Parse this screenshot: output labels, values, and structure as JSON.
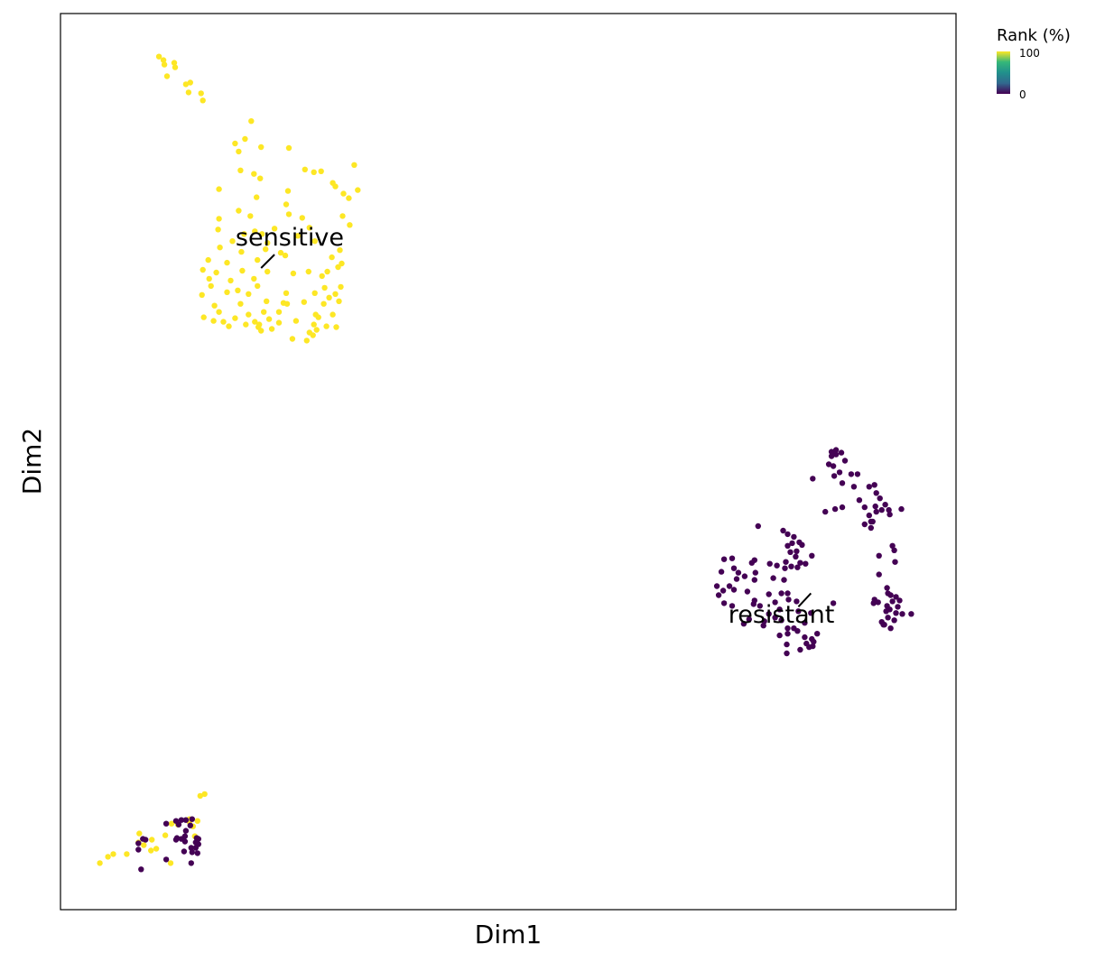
{
  "chart_data": {
    "type": "scatter",
    "xlabel": "Dim1",
    "ylabel": "Dim2",
    "xlim": [
      0,
      100
    ],
    "ylim": [
      0,
      100
    ],
    "axis_ticks": false,
    "grid": false,
    "legend": {
      "title": "Rank (%)",
      "type": "colorbar",
      "placement": "top-right",
      "ticks": [
        "100",
        "0"
      ],
      "colormap": [
        "#440154",
        "#31688e",
        "#21908c",
        "#35b779",
        "#fde725"
      ]
    },
    "annotations": [
      {
        "text": "sensitive",
        "x": 25.6,
        "y": 74.1,
        "point_x": 22.4,
        "point_y": 71.6,
        "tip_x": 23.9,
        "tip_y": 73.1
      },
      {
        "text": "resistant",
        "x": 80.5,
        "y": 32.0,
        "point_x": 83.8,
        "point_y": 35.3,
        "tip_x": 82.4,
        "tip_y": 33.8
      }
    ],
    "series": [
      {
        "color": "#fde725",
        "points": [
          [
            11.0,
            95.2
          ],
          [
            11.5,
            94.8
          ],
          [
            11.6,
            94.3
          ],
          [
            12.7,
            94.5
          ],
          [
            12.8,
            94.0
          ],
          [
            11.9,
            93.0
          ],
          [
            14.0,
            92.1
          ],
          [
            14.5,
            92.3
          ],
          [
            14.3,
            91.2
          ],
          [
            15.7,
            91.1
          ],
          [
            15.9,
            90.3
          ],
          [
            21.3,
            88.0
          ],
          [
            20.6,
            86.0
          ],
          [
            19.5,
            85.5
          ],
          [
            22.4,
            85.1
          ],
          [
            19.9,
            84.6
          ],
          [
            25.5,
            85.0
          ],
          [
            20.1,
            82.5
          ],
          [
            21.6,
            82.1
          ],
          [
            22.3,
            81.6
          ],
          [
            27.3,
            82.6
          ],
          [
            28.3,
            82.3
          ],
          [
            29.1,
            82.4
          ],
          [
            32.8,
            83.1
          ],
          [
            30.4,
            81.1
          ],
          [
            33.2,
            80.3
          ],
          [
            25.4,
            80.2
          ],
          [
            17.7,
            80.4
          ],
          [
            21.9,
            79.5
          ],
          [
            30.7,
            80.7
          ],
          [
            31.6,
            79.9
          ],
          [
            32.2,
            79.4
          ],
          [
            25.2,
            78.7
          ],
          [
            19.9,
            78.0
          ],
          [
            21.2,
            77.4
          ],
          [
            17.7,
            77.1
          ],
          [
            25.5,
            77.6
          ],
          [
            27.0,
            77.2
          ],
          [
            31.5,
            77.4
          ],
          [
            32.3,
            76.4
          ],
          [
            23.9,
            76.0
          ],
          [
            21.7,
            75.7
          ],
          [
            27.8,
            76.1
          ],
          [
            17.6,
            75.9
          ],
          [
            20.5,
            75.4
          ],
          [
            22.5,
            75.4
          ],
          [
            26.5,
            75.2
          ],
          [
            19.2,
            74.6
          ],
          [
            23.1,
            74.4
          ],
          [
            28.4,
            74.6
          ],
          [
            17.8,
            73.9
          ],
          [
            20.2,
            73.4
          ],
          [
            22.9,
            73.7
          ],
          [
            24.6,
            73.3
          ],
          [
            31.2,
            73.6
          ],
          [
            16.5,
            72.5
          ],
          [
            18.6,
            72.2
          ],
          [
            22.0,
            72.5
          ],
          [
            25.1,
            73.0
          ],
          [
            30.3,
            72.8
          ],
          [
            31.4,
            72.1
          ],
          [
            15.9,
            71.4
          ],
          [
            17.4,
            71.1
          ],
          [
            20.3,
            71.3
          ],
          [
            23.1,
            71.2
          ],
          [
            26.0,
            71.0
          ],
          [
            27.7,
            71.2
          ],
          [
            29.8,
            71.2
          ],
          [
            31.0,
            71.7
          ],
          [
            16.6,
            70.4
          ],
          [
            19.0,
            70.2
          ],
          [
            21.6,
            70.4
          ],
          [
            29.2,
            70.7
          ],
          [
            16.8,
            69.6
          ],
          [
            19.8,
            69.1
          ],
          [
            22.0,
            69.6
          ],
          [
            29.5,
            69.4
          ],
          [
            31.3,
            69.5
          ],
          [
            15.8,
            68.6
          ],
          [
            18.6,
            68.9
          ],
          [
            21.0,
            68.7
          ],
          [
            25.2,
            68.8
          ],
          [
            28.4,
            68.8
          ],
          [
            30.0,
            68.3
          ],
          [
            30.7,
            68.7
          ],
          [
            17.2,
            67.4
          ],
          [
            20.1,
            67.6
          ],
          [
            23.0,
            67.9
          ],
          [
            24.9,
            67.7
          ],
          [
            27.2,
            67.8
          ],
          [
            29.4,
            67.6
          ],
          [
            31.1,
            67.9
          ],
          [
            17.7,
            66.7
          ],
          [
            21.0,
            66.4
          ],
          [
            22.7,
            66.7
          ],
          [
            24.4,
            66.7
          ],
          [
            25.3,
            67.6
          ],
          [
            28.5,
            66.4
          ],
          [
            16.0,
            66.1
          ],
          [
            17.1,
            65.7
          ],
          [
            18.2,
            65.6
          ],
          [
            19.5,
            66.0
          ],
          [
            21.7,
            65.6
          ],
          [
            23.3,
            65.9
          ],
          [
            26.3,
            65.7
          ],
          [
            28.8,
            66.1
          ],
          [
            30.4,
            66.4
          ],
          [
            18.8,
            65.1
          ],
          [
            20.7,
            65.3
          ],
          [
            22.2,
            65.3
          ],
          [
            24.4,
            65.5
          ],
          [
            28.3,
            65.3
          ],
          [
            30.8,
            65.0
          ],
          [
            22.1,
            65.0
          ],
          [
            28.6,
            64.7
          ],
          [
            29.7,
            65.1
          ],
          [
            22.4,
            64.6
          ],
          [
            23.6,
            64.8
          ],
          [
            27.8,
            64.4
          ],
          [
            25.9,
            63.7
          ],
          [
            27.5,
            63.5
          ],
          [
            28.2,
            64.1
          ],
          [
            5.9,
            6.2
          ],
          [
            4.4,
            5.2
          ],
          [
            5.3,
            5.9
          ],
          [
            7.4,
            6.2
          ],
          [
            9.3,
            7.2
          ],
          [
            10.1,
            6.6
          ],
          [
            10.7,
            6.8
          ],
          [
            13.1,
            9.5
          ],
          [
            12.4,
            9.6
          ],
          [
            14.4,
            10.1
          ],
          [
            11.7,
            8.3
          ],
          [
            8.8,
            8.5
          ],
          [
            8.7,
            7.5
          ],
          [
            15.0,
            8.2
          ],
          [
            14.8,
            9.3
          ],
          [
            14.4,
            9.8
          ],
          [
            15.3,
            9.9
          ],
          [
            15.6,
            12.7
          ],
          [
            16.1,
            12.9
          ],
          [
            12.3,
            5.2
          ],
          [
            10.2,
            7.8
          ]
        ]
      },
      {
        "color": "#440154",
        "points": [
          [
            86.1,
            51.1
          ],
          [
            86.6,
            51.3
          ],
          [
            86.6,
            50.8
          ],
          [
            86.1,
            50.6
          ],
          [
            86.2,
            50.8
          ],
          [
            87.2,
            51.0
          ],
          [
            87.6,
            50.1
          ],
          [
            85.8,
            49.7
          ],
          [
            86.3,
            49.5
          ],
          [
            84.0,
            48.1
          ],
          [
            86.4,
            48.4
          ],
          [
            87.0,
            48.8
          ],
          [
            88.3,
            48.6
          ],
          [
            89.0,
            48.6
          ],
          [
            87.3,
            47.6
          ],
          [
            88.6,
            47.2
          ],
          [
            90.3,
            47.2
          ],
          [
            90.9,
            47.4
          ],
          [
            91.1,
            46.5
          ],
          [
            89.2,
            45.7
          ],
          [
            91.5,
            45.9
          ],
          [
            92.1,
            45.2
          ],
          [
            91.0,
            45.0
          ],
          [
            91.7,
            44.6
          ],
          [
            92.5,
            44.6
          ],
          [
            93.9,
            44.7
          ],
          [
            87.3,
            44.9
          ],
          [
            86.5,
            44.7
          ],
          [
            89.8,
            44.9
          ],
          [
            90.3,
            44.0
          ],
          [
            90.7,
            43.3
          ],
          [
            92.6,
            44.1
          ],
          [
            91.1,
            44.4
          ],
          [
            85.4,
            44.4
          ],
          [
            90.5,
            43.3
          ],
          [
            89.8,
            43.0
          ],
          [
            90.5,
            42.6
          ],
          [
            92.9,
            40.6
          ],
          [
            93.1,
            40.1
          ],
          [
            91.4,
            39.5
          ],
          [
            93.2,
            38.8
          ],
          [
            91.4,
            37.4
          ],
          [
            92.3,
            35.9
          ],
          [
            91.3,
            34.3
          ],
          [
            92.4,
            35.3
          ],
          [
            92.7,
            35.1
          ],
          [
            93.3,
            34.9
          ],
          [
            92.9,
            34.4
          ],
          [
            93.7,
            34.5
          ],
          [
            92.3,
            33.9
          ],
          [
            93.5,
            33.8
          ],
          [
            92.6,
            33.5
          ],
          [
            93.3,
            33.1
          ],
          [
            94.0,
            33.0
          ],
          [
            93.1,
            32.3
          ],
          [
            92.4,
            32.6
          ],
          [
            91.7,
            32.1
          ],
          [
            91.9,
            31.8
          ],
          [
            92.7,
            31.4
          ],
          [
            92.0,
            31.8
          ],
          [
            95.0,
            33.0
          ],
          [
            92.2,
            33.3
          ],
          [
            90.8,
            34.2
          ],
          [
            90.9,
            34.6
          ],
          [
            77.9,
            42.8
          ],
          [
            80.7,
            42.3
          ],
          [
            81.2,
            41.9
          ],
          [
            81.2,
            40.6
          ],
          [
            81.5,
            39.9
          ],
          [
            81.7,
            40.9
          ],
          [
            81.9,
            41.6
          ],
          [
            82.2,
            40.0
          ],
          [
            82.1,
            39.4
          ],
          [
            82.6,
            38.7
          ],
          [
            82.3,
            38.2
          ],
          [
            82.8,
            40.7
          ],
          [
            82.5,
            41.0
          ],
          [
            81.0,
            38.8
          ],
          [
            80.0,
            38.4
          ],
          [
            79.2,
            38.6
          ],
          [
            83.9,
            39.5
          ],
          [
            83.2,
            38.6
          ],
          [
            81.6,
            38.3
          ],
          [
            80.9,
            38.1
          ],
          [
            75.0,
            39.2
          ],
          [
            74.1,
            39.1
          ],
          [
            73.8,
            37.7
          ],
          [
            75.2,
            38.1
          ],
          [
            75.7,
            37.6
          ],
          [
            77.5,
            39.0
          ],
          [
            77.2,
            38.7
          ],
          [
            77.6,
            37.6
          ],
          [
            77.5,
            36.8
          ],
          [
            76.4,
            37.2
          ],
          [
            75.5,
            36.9
          ],
          [
            79.6,
            37.0
          ],
          [
            80.8,
            36.8
          ],
          [
            74.7,
            36.1
          ],
          [
            73.3,
            36.1
          ],
          [
            74.0,
            35.6
          ],
          [
            75.2,
            35.7
          ],
          [
            76.7,
            35.5
          ],
          [
            79.1,
            35.2
          ],
          [
            80.5,
            35.3
          ],
          [
            73.5,
            35.1
          ],
          [
            77.5,
            34.5
          ],
          [
            74.1,
            34.2
          ],
          [
            75.0,
            33.9
          ],
          [
            77.4,
            34.1
          ],
          [
            78.1,
            33.9
          ],
          [
            79.8,
            34.3
          ],
          [
            81.2,
            35.3
          ],
          [
            81.3,
            34.6
          ],
          [
            82.2,
            34.4
          ],
          [
            82.4,
            33.3
          ],
          [
            80.3,
            33.5
          ],
          [
            79.1,
            33.0
          ],
          [
            76.9,
            32.4
          ],
          [
            78.6,
            32.2
          ],
          [
            79.8,
            32.6
          ],
          [
            80.5,
            32.3
          ],
          [
            76.3,
            31.9
          ],
          [
            78.5,
            31.7
          ],
          [
            81.2,
            31.4
          ],
          [
            81.9,
            31.4
          ],
          [
            82.3,
            31.1
          ],
          [
            81.2,
            30.8
          ],
          [
            83.1,
            32.0
          ],
          [
            83.8,
            33.1
          ],
          [
            83.1,
            30.4
          ],
          [
            84.5,
            30.8
          ],
          [
            83.9,
            30.2
          ],
          [
            84.1,
            29.9
          ],
          [
            83.6,
            29.3
          ],
          [
            84.0,
            29.4
          ],
          [
            82.6,
            29.0
          ],
          [
            81.1,
            28.6
          ],
          [
            83.3,
            29.7
          ],
          [
            81.1,
            29.6
          ],
          [
            80.3,
            30.6
          ],
          [
            86.3,
            34.2
          ],
          [
            9.2,
            7.9
          ],
          [
            8.7,
            7.4
          ],
          [
            9.5,
            7.8
          ],
          [
            8.7,
            6.7
          ],
          [
            9.0,
            4.5
          ],
          [
            11.8,
            5.6
          ],
          [
            11.8,
            9.6
          ],
          [
            12.9,
            9.9
          ],
          [
            13.2,
            9.5
          ],
          [
            13.5,
            10.0
          ],
          [
            14.0,
            10.0
          ],
          [
            14.7,
            10.1
          ],
          [
            14.5,
            9.4
          ],
          [
            13.9,
            8.2
          ],
          [
            13.0,
            8.0
          ],
          [
            13.5,
            7.9
          ],
          [
            14.0,
            8.8
          ],
          [
            15.2,
            8.0
          ],
          [
            15.4,
            7.9
          ],
          [
            15.4,
            7.3
          ],
          [
            15.1,
            7.5
          ],
          [
            15.1,
            6.9
          ],
          [
            14.6,
            6.9
          ],
          [
            15.3,
            6.3
          ],
          [
            14.7,
            6.4
          ],
          [
            14.6,
            5.2
          ],
          [
            13.8,
            6.5
          ],
          [
            13.9,
            7.6
          ],
          [
            12.9,
            7.8
          ]
        ]
      }
    ]
  }
}
